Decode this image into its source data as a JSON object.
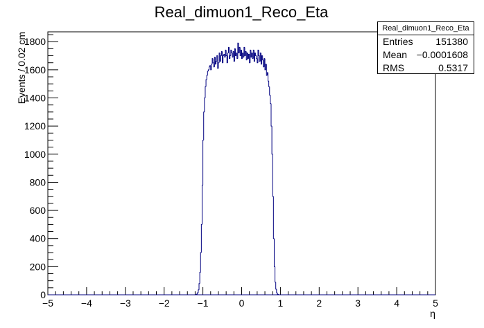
{
  "chart_data": {
    "type": "histogram",
    "title": "Real_dimuon1_Reco_Eta",
    "xlabel": "η",
    "ylabel": "Events / 0.02 cm",
    "xlim": [
      -5,
      5
    ],
    "ylim": [
      0,
      1870
    ],
    "x_ticks": [
      -5,
      -4,
      -3,
      -2,
      -1,
      0,
      1,
      2,
      3,
      4,
      5
    ],
    "x_tick_labels": [
      "−5",
      "−4",
      "−3",
      "−2",
      "−1",
      "0",
      "1",
      "2",
      "3",
      "4",
      "5"
    ],
    "y_ticks": [
      0,
      200,
      400,
      600,
      800,
      1000,
      1200,
      1400,
      1600,
      1800
    ],
    "y_tick_labels": [
      "0",
      "200",
      "400",
      "600",
      "800",
      "1000",
      "1200",
      "1400",
      "1600",
      "1800"
    ],
    "bin_width": 0.02,
    "bins_start": -1.2,
    "values": [
      0,
      2,
      5,
      15,
      35,
      80,
      160,
      300,
      500,
      780,
      1100,
      1300,
      1400,
      1480,
      1530,
      1560,
      1590,
      1600,
      1620,
      1630,
      1600,
      1640,
      1680,
      1650,
      1620,
      1690,
      1640,
      1660,
      1700,
      1610,
      1650,
      1720,
      1660,
      1700,
      1730,
      1650,
      1700,
      1710,
      1690,
      1740,
      1700,
      1650,
      1720,
      1760,
      1680,
      1700,
      1740,
      1720,
      1690,
      1730,
      1660,
      1750,
      1700,
      1720,
      1680,
      1790,
      1720,
      1760,
      1700,
      1740,
      1680,
      1720,
      1690,
      1760,
      1700,
      1730,
      1670,
      1720,
      1680,
      1710,
      1650,
      1740,
      1690,
      1720,
      1680,
      1740,
      1660,
      1720,
      1700,
      1680,
      1650,
      1740,
      1700,
      1660,
      1720,
      1640,
      1700,
      1670,
      1620,
      1680,
      1600,
      1640,
      1560,
      1580,
      1520,
      1480,
      1420,
      1360,
      1200,
      1000,
      700,
      400,
      200,
      90,
      40,
      15,
      5,
      2,
      0,
      0
    ]
  },
  "stats": {
    "title": "Real_dimuon1_Reco_Eta",
    "rows": [
      {
        "label": "Entries",
        "value": "151380"
      },
      {
        "label": "Mean",
        "value": "−0.0001608"
      },
      {
        "label": "RMS",
        "value": "0.5317"
      }
    ]
  },
  "colors": {
    "line": "#000080",
    "axis": "#000000"
  }
}
